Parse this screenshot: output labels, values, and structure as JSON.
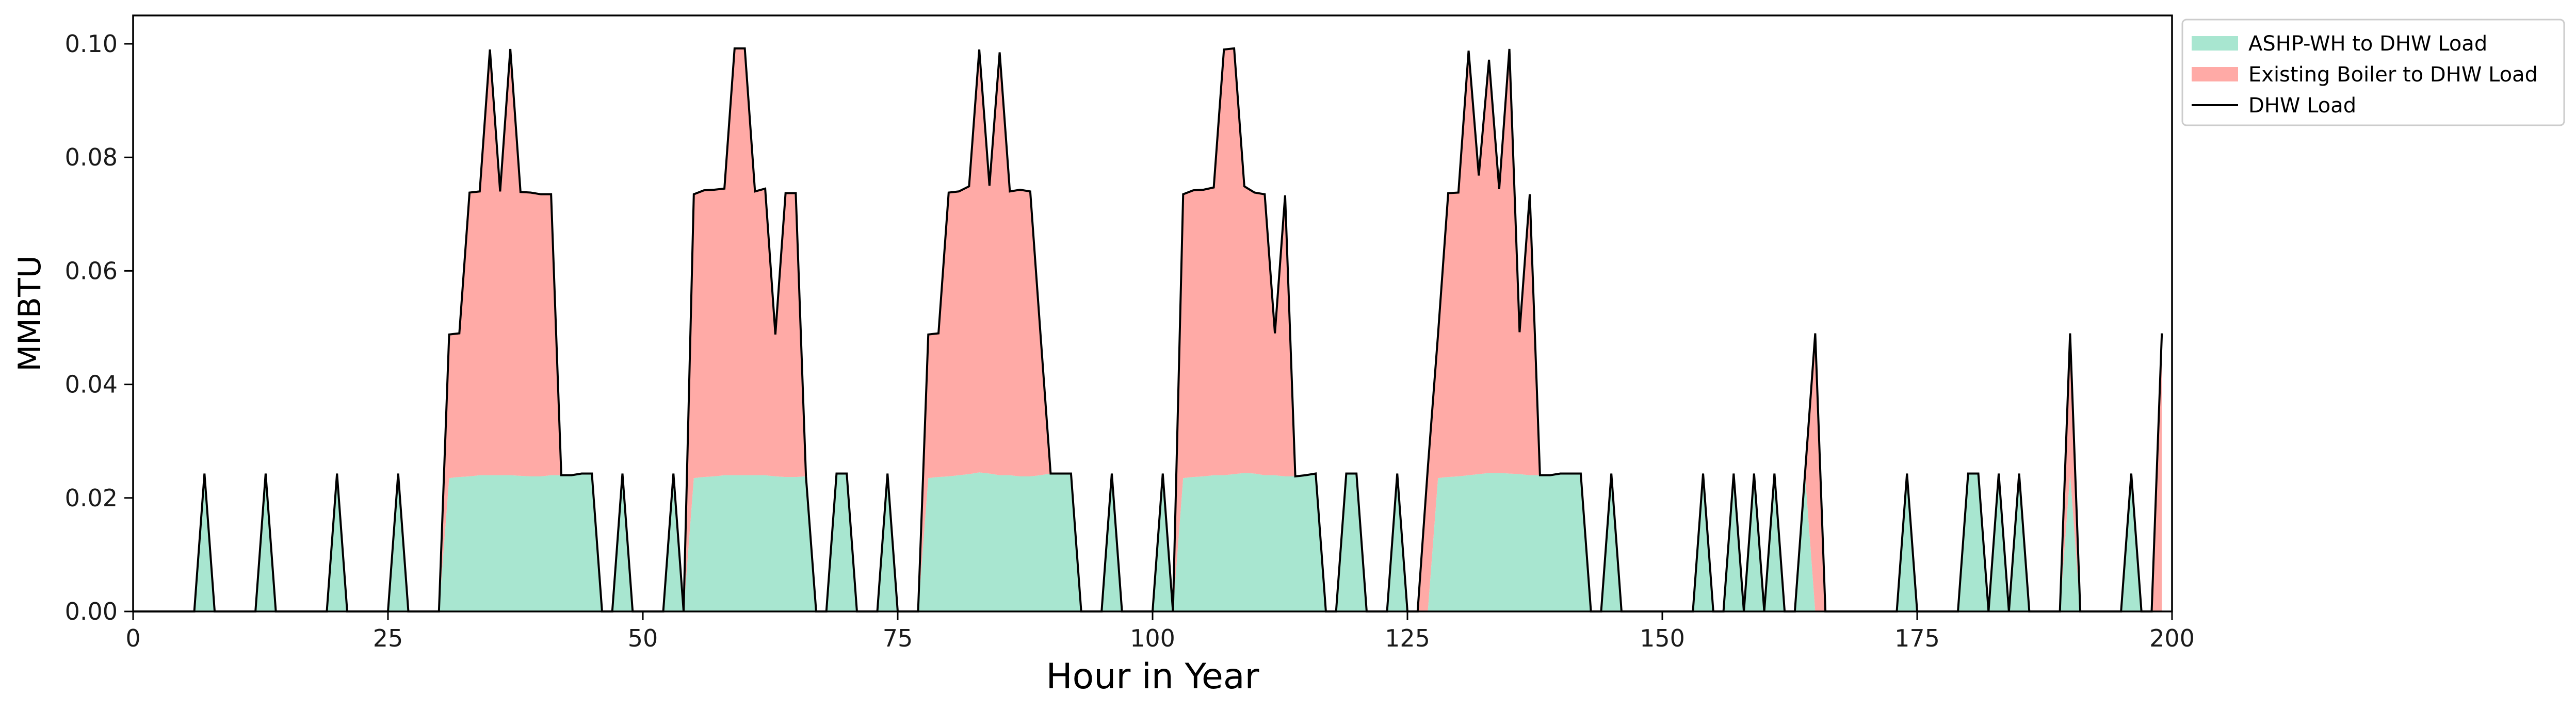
{
  "chart_data": {
    "type": "area",
    "xlabel": "Hour in Year",
    "ylabel": "MMBTU",
    "xlim": [
      0,
      200
    ],
    "ylim": [
      0,
      0.105
    ],
    "xticks": [
      0,
      25,
      50,
      75,
      100,
      125,
      150,
      175,
      200
    ],
    "yticks": [
      0.0,
      0.02,
      0.04,
      0.06,
      0.08,
      0.1
    ],
    "grid": false,
    "legend_position": "upper right, outside plot",
    "colors": {
      "ashp": "#a8e6d0",
      "boiler": "#ffaaa6",
      "load_line": "#000000"
    },
    "series": [
      {
        "name": "ASHP-WH to DHW Load",
        "kind": "stacked-area"
      },
      {
        "name": "Existing Boiler to DHW Load",
        "kind": "stacked-area"
      },
      {
        "name": "DHW Load",
        "kind": "line"
      }
    ],
    "x": [
      0,
      1,
      2,
      3,
      4,
      5,
      6,
      7,
      8,
      9,
      10,
      11,
      12,
      13,
      14,
      15,
      16,
      17,
      18,
      19,
      20,
      21,
      22,
      23,
      24,
      25,
      26,
      27,
      28,
      29,
      30,
      31,
      32,
      33,
      34,
      35,
      36,
      37,
      38,
      39,
      40,
      41,
      42,
      43,
      44,
      45,
      46,
      47,
      48,
      49,
      50,
      51,
      52,
      53,
      54,
      55,
      56,
      57,
      58,
      59,
      60,
      61,
      62,
      63,
      64,
      65,
      66,
      67,
      68,
      69,
      70,
      71,
      72,
      73,
      74,
      75,
      76,
      77,
      78,
      79,
      80,
      81,
      82,
      83,
      84,
      85,
      86,
      87,
      88,
      89,
      90,
      91,
      92,
      93,
      94,
      95,
      96,
      97,
      98,
      99,
      100,
      101,
      102,
      103,
      104,
      105,
      106,
      107,
      108,
      109,
      110,
      111,
      112,
      113,
      114,
      115,
      116,
      117,
      118,
      119,
      120,
      121,
      122,
      123,
      124,
      125,
      126,
      127,
      128,
      129,
      130,
      131,
      132,
      133,
      134,
      135,
      136,
      137,
      138,
      139,
      140,
      141,
      142,
      143,
      144,
      145,
      146,
      147,
      148,
      149,
      150,
      151,
      152,
      153,
      154,
      155,
      156,
      157,
      158,
      159,
      160,
      161,
      162,
      163,
      164,
      165,
      166,
      167,
      168,
      169,
      170,
      171,
      172,
      173,
      174,
      175,
      176,
      177,
      178,
      179,
      180,
      181,
      182,
      183,
      184,
      185,
      186,
      187,
      188,
      189,
      190,
      191,
      192,
      193,
      194,
      195,
      196,
      197,
      198,
      199
    ],
    "ashp_to_dhw": [
      0,
      0,
      0,
      0,
      0,
      0,
      0,
      0.0243,
      0,
      0,
      0,
      0,
      0,
      0.0243,
      0,
      0,
      0,
      0,
      0,
      0,
      0.0243,
      0,
      0,
      0,
      0,
      0,
      0.0243,
      0,
      0,
      0,
      0,
      0.0235,
      0.0237,
      0.0238,
      0.024,
      0.024,
      0.024,
      0.024,
      0.0239,
      0.0238,
      0.0238,
      0.024,
      0.024,
      0.024,
      0.0243,
      0.0243,
      0,
      0,
      0.0243,
      0,
      0,
      0,
      0,
      0.0243,
      0,
      0.0235,
      0.0237,
      0.0238,
      0.024,
      0.024,
      0.024,
      0.024,
      0.024,
      0.0238,
      0.0237,
      0.0237,
      0.0238,
      0,
      0,
      0.0243,
      0.0243,
      0,
      0,
      0,
      0.0243,
      0,
      0,
      0,
      0.0235,
      0.0237,
      0.0238,
      0.024,
      0.0242,
      0.0245,
      0.0243,
      0.024,
      0.024,
      0.0238,
      0.0238,
      0.024,
      0.0243,
      0.0243,
      0.0243,
      0,
      0,
      0,
      0.0243,
      0,
      0,
      0,
      0,
      0.0243,
      0,
      0.0235,
      0.0237,
      0.0238,
      0.024,
      0.024,
      0.0242,
      0.0244,
      0.0243,
      0.024,
      0.024,
      0.0238,
      0.0238,
      0.024,
      0.0243,
      0,
      0,
      0.0243,
      0.0243,
      0,
      0,
      0,
      0.0243,
      0,
      0,
      0,
      0.0235,
      0.0237,
      0.0238,
      0.024,
      0.0242,
      0.0244,
      0.0244,
      0.0243,
      0.0242,
      0.024,
      0.024,
      0.024,
      0.0243,
      0.0243,
      0.0243,
      0,
      0,
      0.0243,
      0,
      0,
      0,
      0,
      0,
      0,
      0,
      0,
      0.0243,
      0,
      0,
      0.0243,
      0,
      0.0243,
      0,
      0.0243,
      0,
      0,
      0.0243,
      0,
      0,
      0,
      0,
      0,
      0,
      0,
      0,
      0,
      0.0243,
      0,
      0,
      0,
      0,
      0,
      0.0243,
      0.0243,
      0,
      0.0243,
      0,
      0.0243,
      0,
      0,
      0,
      0,
      0.0243,
      0,
      0,
      0,
      0,
      0,
      0.0243,
      0,
      0,
      0
    ],
    "boiler_to_dhw": [
      0,
      0,
      0,
      0,
      0,
      0,
      0,
      0,
      0,
      0,
      0,
      0,
      0,
      0,
      0,
      0,
      0,
      0,
      0,
      0,
      0,
      0,
      0,
      0,
      0,
      0,
      0,
      0,
      0,
      0,
      0,
      0.0253,
      0.0253,
      0.05,
      0.05,
      0.075,
      0.05,
      0.0751,
      0.05,
      0.05,
      0.0497,
      0.0495,
      0,
      0,
      0,
      0,
      0,
      0,
      0,
      0,
      0,
      0,
      0,
      0,
      0,
      0.05,
      0.0505,
      0.0505,
      0.0505,
      0.0752,
      0.0752,
      0.05,
      0.0505,
      0.025,
      0.05,
      0.05,
      0,
      0,
      0,
      0,
      0,
      0,
      0,
      0,
      0,
      0,
      0,
      0,
      0.0253,
      0.0253,
      0.05,
      0.05,
      0.0507,
      0.0745,
      0.0507,
      0.0745,
      0.05,
      0.0505,
      0.0502,
      0.025,
      0,
      0,
      0,
      0,
      0,
      0,
      0,
      0,
      0,
      0,
      0,
      0,
      0,
      0.05,
      0.0505,
      0.0505,
      0.0507,
      0.075,
      0.075,
      0.0505,
      0.0495,
      0.0495,
      0.025,
      0.0495,
      0,
      0,
      0,
      0,
      0,
      0,
      0,
      0,
      0,
      0,
      0,
      0,
      0,
      0.0253,
      0.0253,
      0.05,
      0.05,
      0.0748,
      0.0526,
      0.0728,
      0.05,
      0.0748,
      0.025,
      0.0495,
      0,
      0,
      0,
      0,
      0,
      0,
      0,
      0,
      0,
      0,
      0,
      0,
      0,
      0,
      0,
      0,
      0,
      0,
      0,
      0,
      0,
      0,
      0,
      0,
      0,
      0,
      0,
      0.049,
      0,
      0,
      0,
      0,
      0,
      0,
      0,
      0,
      0,
      0,
      0,
      0,
      0,
      0,
      0,
      0,
      0,
      0,
      0,
      0,
      0,
      0,
      0,
      0,
      0.0247,
      0,
      0,
      0,
      0,
      0,
      0,
      0,
      0,
      0.049
    ]
  },
  "legend": {
    "items": [
      {
        "label": "ASHP-WH to DHW Load",
        "symbol": "patch",
        "color": "#a8e6d0"
      },
      {
        "label": "Existing Boiler to DHW Load",
        "symbol": "patch",
        "color": "#ffaaa6"
      },
      {
        "label": "DHW Load",
        "symbol": "line",
        "color": "#000000"
      }
    ]
  }
}
